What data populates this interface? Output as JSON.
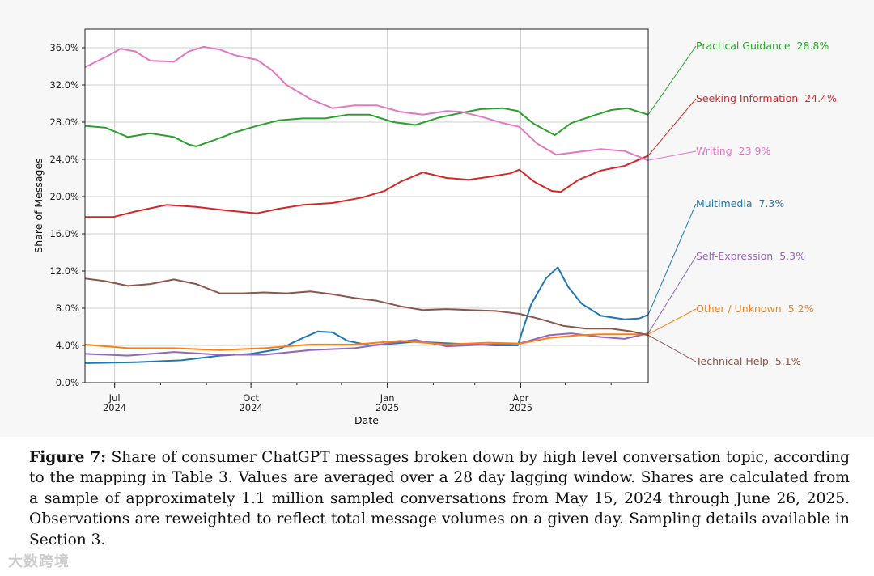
{
  "chart_data": {
    "type": "line",
    "xlabel": "Date",
    "ylabel": "Share of Messages",
    "x_range": [
      "2024-06-11",
      "2025-06-26"
    ],
    "ylim": [
      0,
      38
    ],
    "y_ticks": [
      {
        "value": 0,
        "label": "0.0%"
      },
      {
        "value": 4,
        "label": "4.0%"
      },
      {
        "value": 8,
        "label": "8.0%"
      },
      {
        "value": 12,
        "label": "12.0%"
      },
      {
        "value": 16,
        "label": "16.0%"
      },
      {
        "value": 20,
        "label": "20.0%"
      },
      {
        "value": 24,
        "label": "24.0%"
      },
      {
        "value": 28,
        "label": "28.0%"
      },
      {
        "value": 32,
        "label": "32.0%"
      },
      {
        "value": 36,
        "label": "36.0%"
      }
    ],
    "x_ticks": [
      {
        "date": "2024-07-01",
        "label": "Jul",
        "sublabel": "2024"
      },
      {
        "date": "2024-10-01",
        "label": "Oct",
        "sublabel": "2024"
      },
      {
        "date": "2025-01-01",
        "label": "Jan",
        "sublabel": "2025"
      },
      {
        "date": "2025-04-01",
        "label": "Apr",
        "sublabel": "2025"
      }
    ],
    "grid": true,
    "series": [
      {
        "name": "Practical Guidance",
        "end_label": "28.8%",
        "color": "#2ca02c",
        "points": [
          [
            "2024-06-11",
            27.6
          ],
          [
            "2024-06-25",
            27.4
          ],
          [
            "2024-07-10",
            26.4
          ],
          [
            "2024-07-25",
            26.8
          ],
          [
            "2024-08-10",
            26.4
          ],
          [
            "2024-08-20",
            25.6
          ],
          [
            "2024-08-25",
            25.4
          ],
          [
            "2024-09-05",
            26.0
          ],
          [
            "2024-09-20",
            26.9
          ],
          [
            "2024-10-05",
            27.6
          ],
          [
            "2024-10-20",
            28.2
          ],
          [
            "2024-11-05",
            28.4
          ],
          [
            "2024-11-20",
            28.4
          ],
          [
            "2024-12-05",
            28.8
          ],
          [
            "2024-12-20",
            28.8
          ],
          [
            "2025-01-05",
            28.0
          ],
          [
            "2025-01-20",
            27.7
          ],
          [
            "2025-02-05",
            28.5
          ],
          [
            "2025-02-20",
            29.0
          ],
          [
            "2025-03-05",
            29.4
          ],
          [
            "2025-03-20",
            29.5
          ],
          [
            "2025-03-30",
            29.2
          ],
          [
            "2025-04-10",
            27.8
          ],
          [
            "2025-04-24",
            26.6
          ],
          [
            "2025-05-05",
            27.9
          ],
          [
            "2025-05-20",
            28.7
          ],
          [
            "2025-06-01",
            29.3
          ],
          [
            "2025-06-12",
            29.5
          ],
          [
            "2025-06-26",
            28.8
          ]
        ]
      },
      {
        "name": "Seeking Information",
        "end_label": "24.4%",
        "color": "#d62728",
        "points": [
          [
            "2024-06-11",
            17.8
          ],
          [
            "2024-06-30",
            17.8
          ],
          [
            "2024-07-15",
            18.4
          ],
          [
            "2024-08-05",
            19.1
          ],
          [
            "2024-08-25",
            18.9
          ],
          [
            "2024-09-15",
            18.5
          ],
          [
            "2024-10-05",
            18.2
          ],
          [
            "2024-10-20",
            18.7
          ],
          [
            "2024-11-05",
            19.1
          ],
          [
            "2024-11-25",
            19.3
          ],
          [
            "2024-12-15",
            19.9
          ],
          [
            "2024-12-30",
            20.6
          ],
          [
            "2025-01-10",
            21.6
          ],
          [
            "2025-01-25",
            22.6
          ],
          [
            "2025-02-10",
            22.0
          ],
          [
            "2025-02-25",
            21.8
          ],
          [
            "2025-03-10",
            22.1
          ],
          [
            "2025-03-25",
            22.5
          ],
          [
            "2025-03-31",
            22.9
          ],
          [
            "2025-04-10",
            21.6
          ],
          [
            "2025-04-22",
            20.6
          ],
          [
            "2025-04-28",
            20.5
          ],
          [
            "2025-05-10",
            21.8
          ],
          [
            "2025-05-25",
            22.8
          ],
          [
            "2025-06-10",
            23.3
          ],
          [
            "2025-06-26",
            24.4
          ]
        ]
      },
      {
        "name": "Writing",
        "end_label": "23.9%",
        "color": "#e377c2",
        "points": [
          [
            "2024-06-11",
            33.9
          ],
          [
            "2024-06-25",
            35.0
          ],
          [
            "2024-07-05",
            35.9
          ],
          [
            "2024-07-15",
            35.6
          ],
          [
            "2024-07-25",
            34.6
          ],
          [
            "2024-08-10",
            34.5
          ],
          [
            "2024-08-20",
            35.6
          ],
          [
            "2024-08-30",
            36.1
          ],
          [
            "2024-09-10",
            35.8
          ],
          [
            "2024-09-20",
            35.2
          ],
          [
            "2024-10-05",
            34.7
          ],
          [
            "2024-10-15",
            33.6
          ],
          [
            "2024-10-25",
            32.0
          ],
          [
            "2024-11-10",
            30.5
          ],
          [
            "2024-11-25",
            29.5
          ],
          [
            "2024-12-10",
            29.8
          ],
          [
            "2024-12-25",
            29.8
          ],
          [
            "2025-01-10",
            29.1
          ],
          [
            "2025-01-25",
            28.8
          ],
          [
            "2025-02-10",
            29.2
          ],
          [
            "2025-02-20",
            29.1
          ],
          [
            "2025-03-05",
            28.6
          ],
          [
            "2025-03-20",
            27.9
          ],
          [
            "2025-03-31",
            27.5
          ],
          [
            "2025-04-12",
            25.7
          ],
          [
            "2025-04-25",
            24.5
          ],
          [
            "2025-05-10",
            24.8
          ],
          [
            "2025-05-25",
            25.1
          ],
          [
            "2025-06-10",
            24.9
          ],
          [
            "2025-06-26",
            23.9
          ]
        ]
      },
      {
        "name": "Multimedia",
        "end_label": "7.3%",
        "color": "#1f77b4",
        "points": [
          [
            "2024-06-11",
            2.1
          ],
          [
            "2024-07-15",
            2.2
          ],
          [
            "2024-08-15",
            2.4
          ],
          [
            "2024-09-10",
            2.9
          ],
          [
            "2024-10-01",
            3.1
          ],
          [
            "2024-10-20",
            3.6
          ],
          [
            "2024-11-05",
            4.8
          ],
          [
            "2024-11-15",
            5.5
          ],
          [
            "2024-11-25",
            5.4
          ],
          [
            "2024-12-05",
            4.5
          ],
          [
            "2024-12-20",
            4.0
          ],
          [
            "2025-01-05",
            4.2
          ],
          [
            "2025-01-20",
            4.4
          ],
          [
            "2025-02-15",
            4.2
          ],
          [
            "2025-03-15",
            4.0
          ],
          [
            "2025-03-30",
            4.0
          ],
          [
            "2025-04-01",
            5.0
          ],
          [
            "2025-04-08",
            8.4
          ],
          [
            "2025-04-18",
            11.2
          ],
          [
            "2025-04-26",
            12.4
          ],
          [
            "2025-05-03",
            10.3
          ],
          [
            "2025-05-12",
            8.5
          ],
          [
            "2025-05-25",
            7.2
          ],
          [
            "2025-06-10",
            6.8
          ],
          [
            "2025-06-20",
            6.9
          ],
          [
            "2025-06-26",
            7.3
          ]
        ]
      },
      {
        "name": "Self-Expression",
        "end_label": "5.3%",
        "color": "#9467bd",
        "points": [
          [
            "2024-06-11",
            3.1
          ],
          [
            "2024-07-10",
            2.9
          ],
          [
            "2024-08-10",
            3.3
          ],
          [
            "2024-09-10",
            3.0
          ],
          [
            "2024-10-10",
            3.0
          ],
          [
            "2024-11-10",
            3.5
          ],
          [
            "2024-12-10",
            3.7
          ],
          [
            "2025-01-10",
            4.4
          ],
          [
            "2025-01-20",
            4.6
          ],
          [
            "2025-02-10",
            3.9
          ],
          [
            "2025-03-10",
            4.1
          ],
          [
            "2025-03-31",
            4.2
          ],
          [
            "2025-04-20",
            5.1
          ],
          [
            "2025-05-05",
            5.3
          ],
          [
            "2025-05-25",
            4.9
          ],
          [
            "2025-06-10",
            4.7
          ],
          [
            "2025-06-26",
            5.3
          ]
        ]
      },
      {
        "name": "Other / Unknown",
        "end_label": "5.2%",
        "color": "#ff7f0e",
        "points": [
          [
            "2024-06-11",
            4.1
          ],
          [
            "2024-07-10",
            3.7
          ],
          [
            "2024-08-10",
            3.7
          ],
          [
            "2024-09-10",
            3.5
          ],
          [
            "2024-10-10",
            3.7
          ],
          [
            "2024-11-10",
            4.1
          ],
          [
            "2024-12-10",
            4.1
          ],
          [
            "2025-01-10",
            4.5
          ],
          [
            "2025-02-10",
            4.1
          ],
          [
            "2025-03-10",
            4.3
          ],
          [
            "2025-04-01",
            4.2
          ],
          [
            "2025-04-20",
            4.8
          ],
          [
            "2025-05-10",
            5.1
          ],
          [
            "2025-05-25",
            5.2
          ],
          [
            "2025-06-10",
            5.2
          ],
          [
            "2025-06-26",
            5.2
          ]
        ]
      },
      {
        "name": "Technical Help",
        "end_label": "5.1%",
        "color": "#8c564b",
        "points": [
          [
            "2024-06-11",
            11.2
          ],
          [
            "2024-06-25",
            10.9
          ],
          [
            "2024-07-10",
            10.4
          ],
          [
            "2024-07-25",
            10.6
          ],
          [
            "2024-08-10",
            11.1
          ],
          [
            "2024-08-25",
            10.6
          ],
          [
            "2024-09-10",
            9.6
          ],
          [
            "2024-09-25",
            9.6
          ],
          [
            "2024-10-10",
            9.7
          ],
          [
            "2024-10-25",
            9.6
          ],
          [
            "2024-11-10",
            9.8
          ],
          [
            "2024-11-25",
            9.5
          ],
          [
            "2024-12-10",
            9.1
          ],
          [
            "2024-12-25",
            8.8
          ],
          [
            "2025-01-10",
            8.2
          ],
          [
            "2025-01-25",
            7.8
          ],
          [
            "2025-02-10",
            7.9
          ],
          [
            "2025-02-25",
            7.8
          ],
          [
            "2025-03-15",
            7.7
          ],
          [
            "2025-03-31",
            7.4
          ],
          [
            "2025-04-15",
            6.8
          ],
          [
            "2025-04-30",
            6.1
          ],
          [
            "2025-05-15",
            5.8
          ],
          [
            "2025-06-01",
            5.8
          ],
          [
            "2025-06-15",
            5.5
          ],
          [
            "2025-06-26",
            5.1
          ]
        ]
      }
    ]
  },
  "caption": {
    "label": "Figure 7:",
    "text": "Share of consumer ChatGPT messages broken down by high level conversation topic, according to the mapping in Table 3. Values are averaged over a 28 day lagging window. Shares are calculated from a sample of approximately 1.1 million sampled conversations from May 15, 2024 through June 26, 2025. Observations are reweighted to reflect total message volumes on a given day. Sampling details available in Section 3."
  },
  "watermark": "大数跨境"
}
